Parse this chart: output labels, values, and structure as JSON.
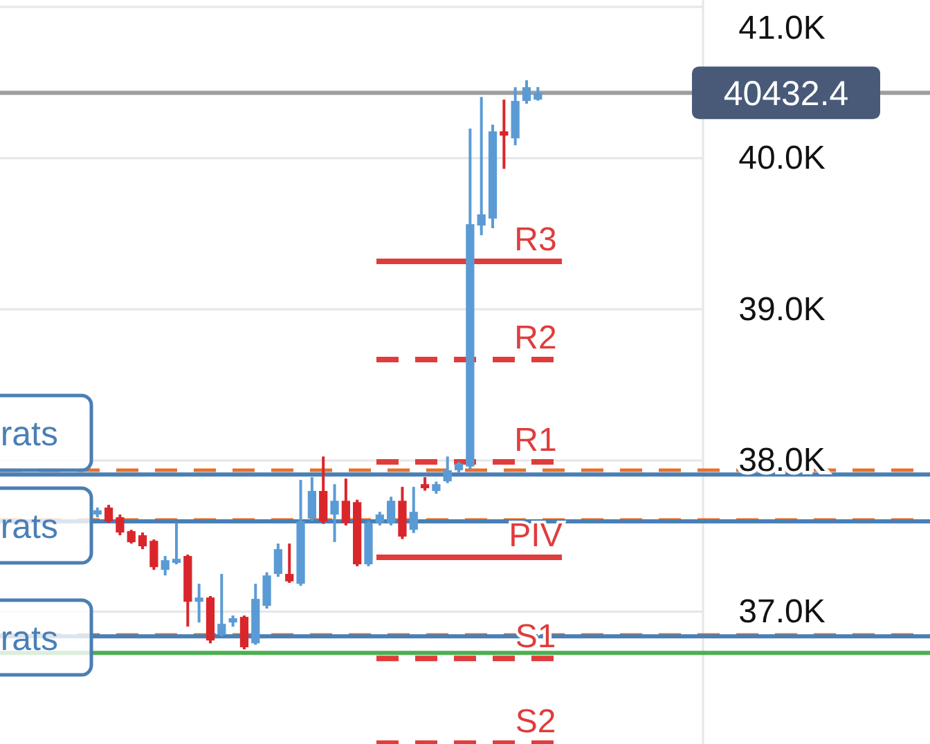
{
  "chart_data": {
    "type": "candlestick",
    "categories": [
      null,
      null,
      null,
      null,
      null,
      null,
      null,
      null,
      null,
      null,
      null,
      null,
      null,
      null,
      null,
      null,
      null,
      null,
      null,
      null,
      null,
      null,
      null,
      null,
      null,
      null,
      null,
      null,
      null,
      null,
      null,
      null,
      null,
      null,
      null,
      null,
      null,
      null,
      null,
      null,
      null,
      null,
      null,
      null,
      null,
      null,
      null,
      null,
      null,
      null,
      null,
      null,
      null,
      null,
      null,
      null,
      null,
      null,
      null,
      null,
      null,
      null
    ],
    "ohlc": [
      null,
      null,
      null,
      null,
      null,
      null,
      null,
      null,
      [
        37642,
        37688,
        37624,
        37670
      ],
      [
        37688,
        37706,
        37587,
        37596
      ],
      [
        37624,
        37642,
        37505,
        37523
      ],
      [
        37532,
        37541,
        37450,
        37459
      ],
      [
        37505,
        37523,
        37413,
        37432
      ],
      [
        37468,
        37477,
        37276,
        37294
      ],
      [
        37276,
        37368,
        37239,
        37340
      ],
      [
        37322,
        37587,
        37313,
        37349
      ],
      [
        37368,
        37377,
        36901,
        37065
      ],
      [
        37065,
        37184,
        36928,
        37093
      ],
      [
        37093,
        37103,
        36790,
        36809
      ],
      [
        36846,
        37249,
        36837,
        36919
      ],
      [
        36928,
        36974,
        36900,
        36956
      ],
      [
        36965,
        36974,
        36750,
        36764
      ],
      [
        36790,
        37184,
        36780,
        37084
      ],
      [
        37038,
        37260,
        37020,
        37239
      ],
      [
        37249,
        37450,
        37230,
        37413
      ],
      [
        37249,
        37450,
        37190,
        37200
      ],
      [
        37184,
        37871,
        37170,
        37596
      ],
      [
        37615,
        37889,
        37600,
        37798
      ],
      [
        37798,
        38026,
        37580,
        37596
      ],
      [
        37642,
        37843,
        37460,
        37733
      ],
      [
        37733,
        37880,
        37570,
        37587
      ],
      [
        37724,
        37740,
        37300,
        37313
      ],
      [
        37313,
        37600,
        37300,
        37587
      ],
      [
        37587,
        37660,
        37570,
        37642
      ],
      [
        37587,
        37760,
        37570,
        37733
      ],
      [
        37733,
        37825,
        37480,
        37496
      ],
      [
        37541,
        37825,
        37520,
        37660
      ],
      [
        37843,
        37889,
        37800,
        37816
      ],
      [
        37798,
        37860,
        37780,
        37843
      ],
      [
        37862,
        38026,
        37850,
        37935
      ],
      [
        37935,
        37990,
        37920,
        37980
      ],
      [
        37960,
        40195,
        37940,
        39563
      ],
      [
        39554,
        40405,
        39490,
        39628
      ],
      [
        39600,
        40222,
        39536,
        40177
      ],
      [
        40177,
        40387,
        39929,
        40149
      ],
      [
        40131,
        40469,
        40085,
        40378
      ],
      [
        40378,
        40515,
        40360,
        40469
      ],
      [
        40387,
        40470,
        40380,
        40432.4
      ],
      null,
      null,
      null,
      null,
      null,
      null,
      null,
      null,
      null,
      null,
      null,
      null,
      null,
      null
    ],
    "colors": [
      null,
      null,
      null,
      null,
      null,
      null,
      null,
      null,
      "#5b9bd5",
      "#d9262b",
      "#d9262b",
      "#d9262b",
      "#d9262b",
      "#d9262b",
      "#5b9bd5",
      "#5b9bd5",
      "#d9262b",
      "#5b9bd5",
      "#d9262b",
      "#5b9bd5",
      "#5b9bd5",
      "#d9262b",
      "#5b9bd5",
      "#5b9bd5",
      "#5b9bd5",
      "#d9262b",
      "#5b9bd5",
      "#5b9bd5",
      "#d9262b",
      "#5b9bd5",
      "#d9262b",
      "#d9262b",
      "#5b9bd5",
      "#5b9bd5",
      "#5b9bd5",
      "#d9262b",
      "#5b9bd5",
      "#d9262b",
      "#5b9bd5",
      "#5b9bd5",
      "#5b9bd5",
      "#5b9bd5",
      "#5b9bd5",
      "#5b9bd5",
      "#d9262b",
      "#5b9bd5",
      "#5b9bd5",
      "#5b9bd5",
      null,
      null,
      null,
      null,
      null,
      null,
      null,
      null,
      null,
      null,
      null,
      null,
      null,
      null
    ],
    "ylim": [
      36124,
      41046
    ],
    "yticks": [
      {
        "value": 37000,
        "label": "37.0K"
      },
      {
        "value": 38000,
        "label": "38.0K"
      },
      {
        "value": 39000,
        "label": "39.0K"
      },
      {
        "value": 40000,
        "label": "40.0K"
      },
      {
        "value": 41000,
        "label": "41.0K"
      }
    ],
    "tick_labels": "y",
    "grid": "y",
    "ref_lines": [
      {
        "axis": "y",
        "value": 36727,
        "color": "#4caf50",
        "line_style": "solid"
      },
      {
        "axis": "y",
        "value": 37935,
        "color": "#e8702a",
        "line_style": "dashed"
      },
      {
        "axis": "y",
        "value": 37606,
        "color": "#e8702a",
        "line_style": "dashed"
      },
      {
        "axis": "y",
        "value": 36846,
        "color": "#e8702a",
        "line_style": "dashed"
      },
      {
        "axis": "y",
        "value": 37907,
        "color": "#4a7fb5",
        "line_style": "solid"
      },
      {
        "axis": "y",
        "value": 37597,
        "color": "#4a7fb5",
        "line_style": "solid"
      },
      {
        "axis": "y",
        "value": 36837,
        "color": "#4a7fb5",
        "line_style": "solid"
      },
      {
        "axis": "y",
        "value": 40432.4,
        "color": "#9e9e9e",
        "line_style": "solid"
      },
      {
        "axis": "y",
        "value": 39317,
        "label": "R3",
        "color": "#e03c3c",
        "line_style": "solid"
      },
      {
        "axis": "y",
        "value": 38667,
        "label": "R2",
        "color": "#e03c3c",
        "line_style": "dashed"
      },
      {
        "axis": "y",
        "value": 37990,
        "label": "R1",
        "color": "#e03c3c",
        "line_style": "dashed"
      },
      {
        "axis": "y",
        "value": 37359,
        "label": "PIV",
        "color": "#e03c3c",
        "line_style": "solid"
      },
      {
        "axis": "y",
        "value": 36690,
        "label": "S1",
        "color": "#e03c3c",
        "line_style": "dashed"
      },
      {
        "axis": "y",
        "value": 36130,
        "label": "S2",
        "color": "#e03c3c",
        "line_style": "dashed"
      }
    ],
    "annotations": [
      "rats",
      "rats",
      "rats",
      {
        "text": "40432.4",
        "y": 40432.4
      }
    ]
  }
}
